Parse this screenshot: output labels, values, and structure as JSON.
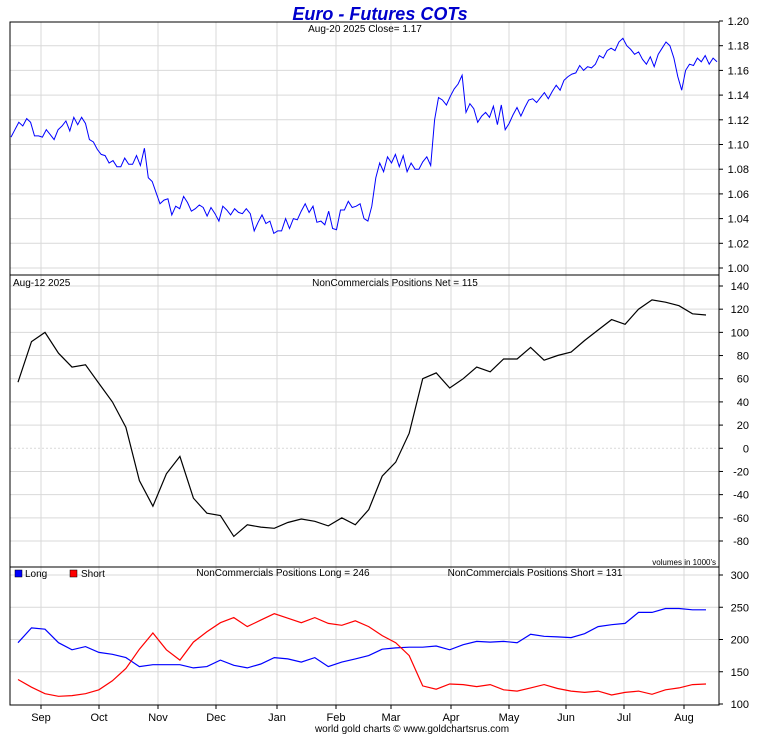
{
  "title": "Euro - Futures COTs",
  "footer": "world gold charts © www.goldchartsrus.com",
  "months": [
    "Sep",
    "Oct",
    "Nov",
    "Dec",
    "Jan",
    "Feb",
    "Mar",
    "Apr",
    "May",
    "Jun",
    "Jul",
    "Aug"
  ],
  "chart_data": [
    {
      "type": "line",
      "subtitle": "Aug-20  2025   Close= 1.17",
      "ylim": [
        1.0,
        1.2
      ],
      "yticks": [
        "1.00",
        "1.02",
        "1.04",
        "1.06",
        "1.08",
        "1.10",
        "1.12",
        "1.14",
        "1.16",
        "1.18",
        "1.20"
      ],
      "grid": true,
      "series": [
        {
          "color": "#0000ff",
          "values": [
            1.106,
            1.112,
            1.118,
            1.115,
            1.121,
            1.118,
            1.107,
            1.107,
            1.106,
            1.112,
            1.108,
            1.104,
            1.112,
            1.115,
            1.119,
            1.111,
            1.122,
            1.116,
            1.122,
            1.117,
            1.104,
            1.102,
            1.096,
            1.092,
            1.091,
            1.085,
            1.087,
            1.082,
            1.082,
            1.089,
            1.084,
            1.084,
            1.091,
            1.083,
            1.097,
            1.073,
            1.07,
            1.061,
            1.052,
            1.055,
            1.056,
            1.043,
            1.05,
            1.048,
            1.058,
            1.053,
            1.046,
            1.048,
            1.051,
            1.049,
            1.042,
            1.049,
            1.044,
            1.038,
            1.05,
            1.047,
            1.043,
            1.048,
            1.045,
            1.044,
            1.048,
            1.044,
            1.03,
            1.037,
            1.043,
            1.036,
            1.038,
            1.028,
            1.03,
            1.03,
            1.04,
            1.032,
            1.04,
            1.039,
            1.046,
            1.052,
            1.045,
            1.05,
            1.037,
            1.038,
            1.035,
            1.046,
            1.032,
            1.031,
            1.047,
            1.047,
            1.054,
            1.049,
            1.05,
            1.052,
            1.04,
            1.038,
            1.05,
            1.073,
            1.085,
            1.078,
            1.09,
            1.085,
            1.092,
            1.082,
            1.091,
            1.078,
            1.085,
            1.08,
            1.08,
            1.086,
            1.09,
            1.083,
            1.12,
            1.138,
            1.136,
            1.132,
            1.139,
            1.145,
            1.149,
            1.156,
            1.126,
            1.133,
            1.129,
            1.118,
            1.123,
            1.126,
            1.122,
            1.131,
            1.116,
            1.132,
            1.112,
            1.117,
            1.124,
            1.13,
            1.123,
            1.13,
            1.136,
            1.137,
            1.134,
            1.138,
            1.142,
            1.137,
            1.143,
            1.148,
            1.144,
            1.152,
            1.155,
            1.157,
            1.158,
            1.164,
            1.16,
            1.163,
            1.162,
            1.165,
            1.172,
            1.17,
            1.176,
            1.178,
            1.176,
            1.183,
            1.186,
            1.18,
            1.177,
            1.173,
            1.175,
            1.169,
            1.165,
            1.171,
            1.163,
            1.173,
            1.178,
            1.183,
            1.18,
            1.17,
            1.155,
            1.144,
            1.16,
            1.165,
            1.164,
            1.17,
            1.167,
            1.172,
            1.165,
            1.17,
            1.167
          ]
        }
      ]
    },
    {
      "type": "line",
      "title": "NonCommercials Positions Net = 115",
      "date_label": "Aug-12  2025",
      "note": "volumes in 1000's",
      "ylim": [
        -90,
        145
      ],
      "yticks": [
        "140",
        "120",
        "100",
        "80",
        "60",
        "40",
        "20",
        "0",
        "-20",
        "-40",
        "-60",
        "-80"
      ],
      "grid": true,
      "series": [
        {
          "color": "#000000",
          "values": [
            57,
            92,
            100,
            82,
            70,
            72,
            56,
            40,
            18,
            -28,
            -50,
            -22,
            -7,
            -43,
            -56,
            -58,
            -76,
            -66,
            -68,
            -69,
            -64,
            -61,
            -63,
            -67,
            -60,
            -66,
            -53,
            -24,
            -12,
            13,
            60,
            65,
            52,
            60,
            70,
            66,
            77,
            77,
            87,
            76,
            80,
            83,
            93,
            102,
            111,
            107,
            120,
            128,
            126,
            123,
            116,
            115
          ]
        }
      ]
    },
    {
      "type": "line",
      "title_long": "NonCommercials Positions Long = 246",
      "title_short": "NonCommercials Positions Short = 131",
      "ylim": [
        100,
        300
      ],
      "yticks": [
        "300",
        "250",
        "200",
        "150",
        "100"
      ],
      "grid": true,
      "series": [
        {
          "name": "Long",
          "color": "#0000ff",
          "values": [
            195,
            218,
            216,
            195,
            184,
            189,
            180,
            177,
            172,
            158,
            161,
            161,
            161,
            156,
            158,
            168,
            160,
            156,
            162,
            172,
            170,
            165,
            172,
            158,
            165,
            170,
            175,
            185,
            187,
            188,
            188,
            190,
            184,
            192,
            197,
            196,
            197,
            195,
            208,
            205,
            204,
            203,
            209,
            220,
            223,
            225,
            242,
            242,
            248,
            248,
            246,
            246
          ]
        },
        {
          "name": "Short",
          "color": "#ff0000",
          "values": [
            138,
            126,
            116,
            112,
            113,
            116,
            122,
            136,
            155,
            185,
            210,
            184,
            168,
            196,
            212,
            226,
            234,
            220,
            230,
            240,
            233,
            226,
            234,
            225,
            222,
            229,
            220,
            206,
            195,
            175,
            128,
            123,
            131,
            130,
            127,
            130,
            122,
            120,
            125,
            130,
            124,
            120,
            118,
            120,
            114,
            118,
            120,
            115,
            122,
            125,
            130,
            131
          ]
        }
      ]
    }
  ]
}
